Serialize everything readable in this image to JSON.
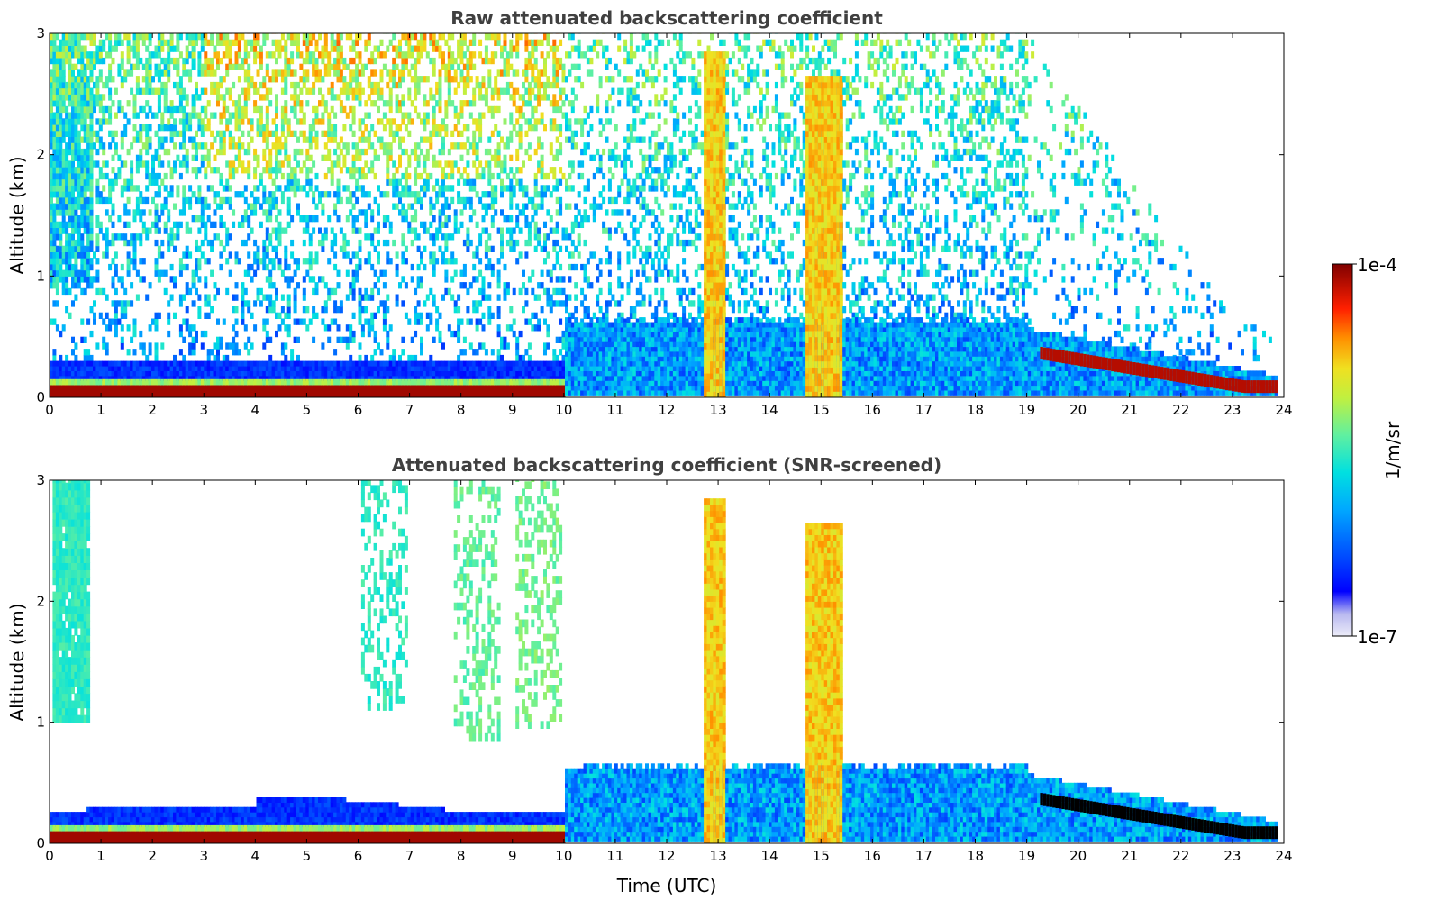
{
  "colors": {
    "colormap": [
      "#ffffff",
      "#d8d8f8",
      "#0000ff",
      "#0060ff",
      "#00c8ff",
      "#40f0c0",
      "#a0f060",
      "#f0f020",
      "#ffa000",
      "#ff2000",
      "#800000"
    ],
    "screened_black": "#000000"
  },
  "chart_data": [
    {
      "type": "heatmap",
      "title": "Raw attenuated backscattering coefficient",
      "xlabel": "",
      "ylabel": "Altitude (km)",
      "xlim": [
        0,
        24
      ],
      "ylim": [
        0,
        3
      ],
      "xticks": [
        "0",
        "1",
        "2",
        "3",
        "4",
        "5",
        "6",
        "7",
        "8",
        "9",
        "10",
        "11",
        "12",
        "13",
        "14",
        "15",
        "16",
        "17",
        "18",
        "19",
        "20",
        "21",
        "22",
        "23",
        "24"
      ],
      "yticks": [
        "0",
        "1",
        "2",
        "3"
      ],
      "features": [
        {
          "name": "surface_layer",
          "x": [
            0,
            10
          ],
          "y": [
            0,
            0.15
          ],
          "level": 1.0
        },
        {
          "name": "aerosol_layer",
          "x": [
            0,
            10
          ],
          "y": [
            0.1,
            0.35
          ],
          "level": 0.25
        },
        {
          "name": "noise_column",
          "x": [
            0,
            0.8
          ],
          "y": [
            0.9,
            3
          ],
          "level": 0.45
        },
        {
          "name": "cloud_column",
          "x": [
            12.7,
            13.1
          ],
          "y": [
            0,
            2.8
          ],
          "level": 0.7
        },
        {
          "name": "cloud_column",
          "x": [
            14.7,
            15.4
          ],
          "y": [
            0,
            2.6
          ],
          "level": 0.7
        },
        {
          "name": "boundary_layer",
          "x": [
            10,
            24
          ],
          "y": [
            0,
            0.6
          ],
          "level": 0.35
        },
        {
          "name": "cloud_layer",
          "x": [
            19.2,
            23.8
          ],
          "y": [
            0.05,
            0.45
          ],
          "level": 0.95
        }
      ]
    },
    {
      "type": "heatmap",
      "title": "Attenuated backscattering coefficient (SNR-screened)",
      "xlabel": "Time (UTC)",
      "ylabel": "Altitude (km)",
      "xlim": [
        0,
        24
      ],
      "ylim": [
        0,
        3
      ],
      "xticks": [
        "0",
        "1",
        "2",
        "3",
        "4",
        "5",
        "6",
        "7",
        "8",
        "9",
        "10",
        "11",
        "12",
        "13",
        "14",
        "15",
        "16",
        "17",
        "18",
        "19",
        "20",
        "21",
        "22",
        "23",
        "24"
      ],
      "yticks": [
        "0",
        "1",
        "2",
        "3"
      ],
      "features": [
        {
          "name": "surface_layer",
          "x": [
            0,
            10
          ],
          "y": [
            0,
            0.15
          ],
          "level": 1.0
        },
        {
          "name": "aerosol_layer",
          "x": [
            0,
            10
          ],
          "y": [
            0.1,
            0.45
          ],
          "level": 0.25
        },
        {
          "name": "column",
          "x": [
            0.1,
            0.7
          ],
          "y": [
            1.0,
            3
          ],
          "level": 0.5
        },
        {
          "name": "cloud_column",
          "x": [
            12.7,
            13.1
          ],
          "y": [
            0,
            2.8
          ],
          "level": 0.7
        },
        {
          "name": "cloud_column",
          "x": [
            14.7,
            15.4
          ],
          "y": [
            0,
            2.6
          ],
          "level": 0.7
        },
        {
          "name": "boundary_layer",
          "x": [
            10,
            24
          ],
          "y": [
            0,
            0.7
          ],
          "level": 0.3
        }
      ]
    }
  ],
  "colorbar": {
    "label": "1/m/sr",
    "max_label": "1e-4",
    "min_label": "1e-7",
    "scale": "log"
  }
}
